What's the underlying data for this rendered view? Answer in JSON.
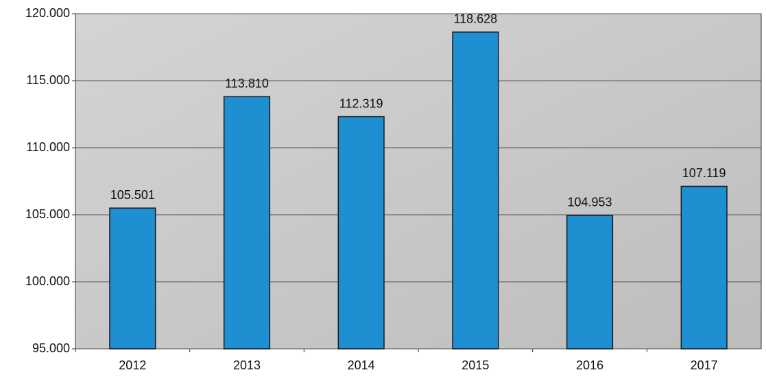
{
  "chart_data": {
    "type": "bar",
    "categories": [
      "2012",
      "2013",
      "2014",
      "2015",
      "2016",
      "2017"
    ],
    "values": [
      105501,
      113810,
      112319,
      118628,
      104953,
      107119
    ],
    "value_labels": [
      "105.501",
      "113.810",
      "112.319",
      "118.628",
      "104.953",
      "107.119"
    ],
    "color": "#1e8fd0",
    "ylim": [
      95000,
      120000
    ],
    "yticks": [
      {
        "value": 95000,
        "label": "95.000"
      },
      {
        "value": 100000,
        "label": "100.000"
      },
      {
        "value": 105000,
        "label": "105.000"
      },
      {
        "value": 110000,
        "label": "110.000"
      },
      {
        "value": 115000,
        "label": "115.000"
      },
      {
        "value": 120000,
        "label": "120.000"
      }
    ],
    "grid": true
  }
}
